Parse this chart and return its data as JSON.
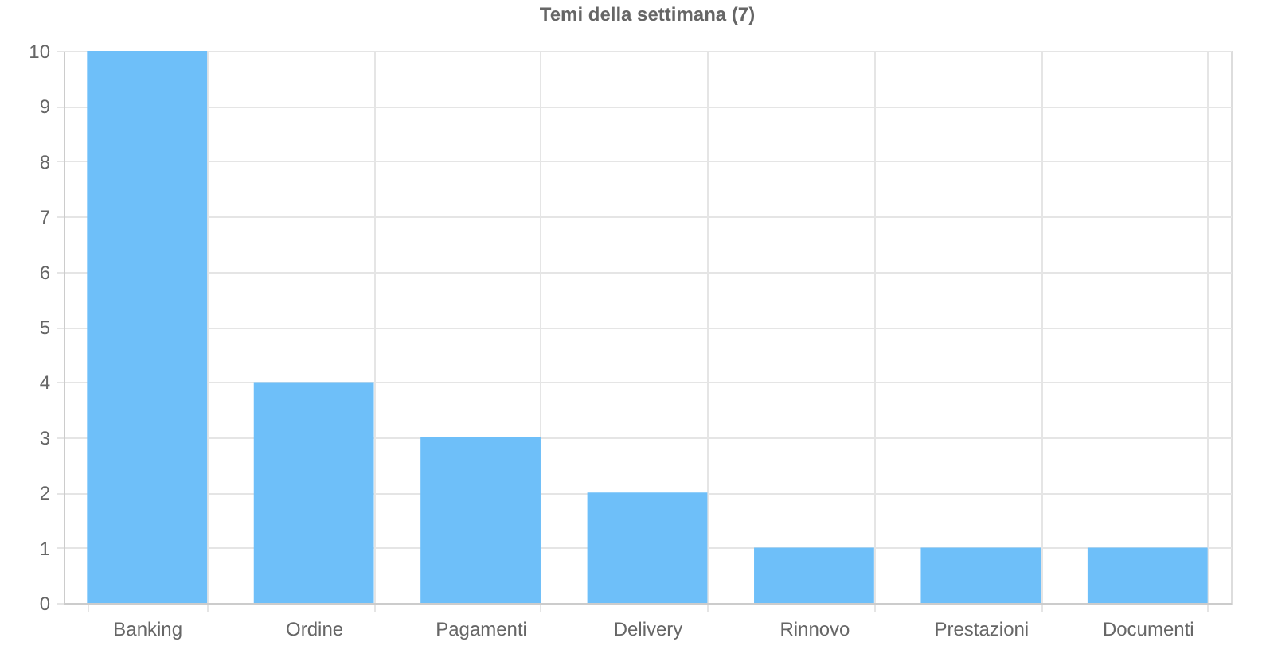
{
  "chart_data": {
    "type": "bar",
    "title": "Temi della settimana (7)",
    "categories": [
      "Banking",
      "Ordine",
      "Pagamenti",
      "Delivery",
      "Rinnovo",
      "Prestazioni",
      "Documenti"
    ],
    "values": [
      10,
      4,
      3,
      2,
      1,
      1,
      1
    ],
    "color": "#6ebff9",
    "ylim": [
      0,
      10
    ],
    "yticks": [
      0,
      1,
      2,
      3,
      4,
      5,
      6,
      7,
      8,
      9,
      10
    ],
    "grid": true
  }
}
